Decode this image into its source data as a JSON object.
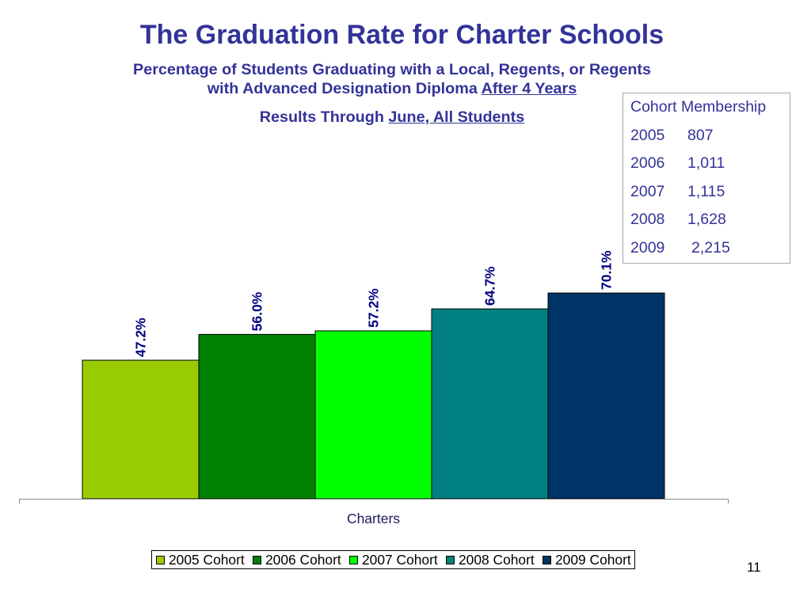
{
  "slide": {
    "subtitle": {
      "line1": "Percentage of Students Graduating with a Local, Regents, or Regents",
      "line2": "with Advanced Designation Diploma",
      "line2_underlined": "After 4 Years"
    },
    "results": {
      "prefix": "Results Through",
      "underlined": "June, All Students"
    },
    "page_number": "11"
  },
  "membership": {
    "heading": "Cohort Membership",
    "rows": [
      {
        "year": "2005",
        "count": "807"
      },
      {
        "year": "2006",
        "count": "1,011"
      },
      {
        "year": "2007",
        "count": "1,115"
      },
      {
        "year": "2008",
        "count": "1,628"
      },
      {
        "year": "2009",
        "count": "2,215"
      }
    ]
  },
  "colors": {
    "title": "#333399",
    "data_labels": "#000080"
  },
  "chart_data": {
    "type": "bar",
    "title": "The Graduation Rate for Charter Schools",
    "categories": [
      "Charters"
    ],
    "series": [
      {
        "name": "2005 Cohort",
        "values": [
          47.2
        ],
        "labels": [
          "47.2%"
        ],
        "color": "#99CC00"
      },
      {
        "name": "2006 Cohort",
        "values": [
          56.0
        ],
        "labels": [
          "56.0%"
        ],
        "color": "#008000"
      },
      {
        "name": "2007 Cohort",
        "values": [
          57.2
        ],
        "labels": [
          "57.2%"
        ],
        "color": "#00FF00"
      },
      {
        "name": "2008 Cohort",
        "values": [
          64.7
        ],
        "labels": [
          "64.7%"
        ],
        "color": "#008080"
      },
      {
        "name": "2009 Cohort",
        "values": [
          70.1
        ],
        "labels": [
          "70.1%"
        ],
        "color": "#003366"
      }
    ],
    "ylim": [
      0,
      80
    ],
    "y_axis_visible": false,
    "grid": false,
    "legend": "bottom"
  }
}
